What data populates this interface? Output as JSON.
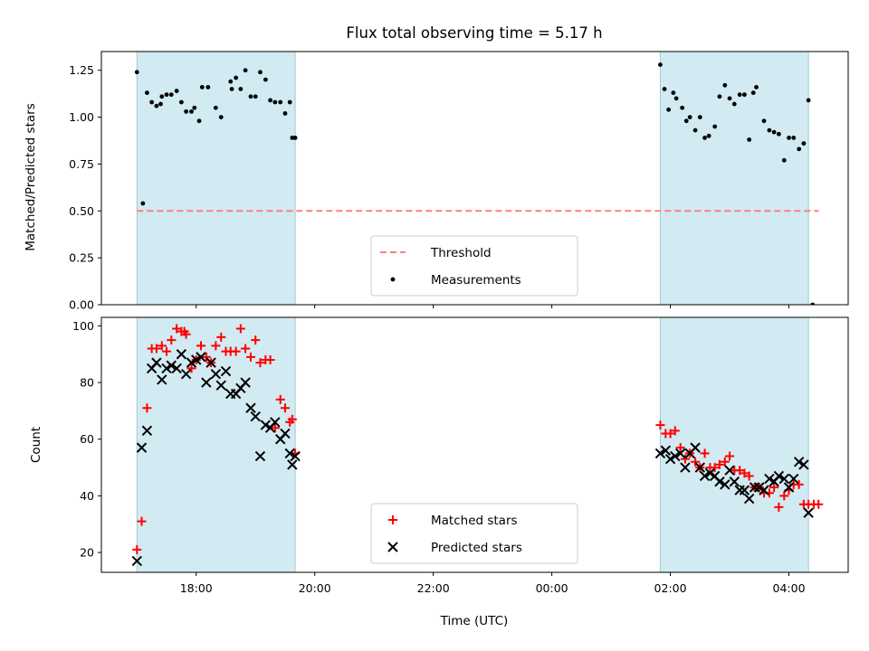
{
  "chart_data": [
    {
      "type": "scatter",
      "title": "Flux total observing time = 5.17 h",
      "ylabel": "Matched/Predicted stars",
      "xlabel": "",
      "xlim": [
        16.4,
        29.0
      ],
      "ylim": [
        0.0,
        1.35
      ],
      "y_ticks": [
        "0.00",
        "0.25",
        "0.50",
        "0.75",
        "1.00",
        "1.25"
      ],
      "y_tick_values": [
        0,
        0.25,
        0.5,
        0.75,
        1.0,
        1.25
      ],
      "x_tick_values": [
        18,
        20,
        22,
        24,
        26,
        28
      ],
      "shaded_intervals": [
        [
          17.0,
          19.67
        ],
        [
          25.83,
          28.33
        ]
      ],
      "shade_color": "#add8e6",
      "legend": {
        "placement": "lower-center",
        "entries": [
          "Threshold",
          "Measurements"
        ]
      },
      "threshold": {
        "name": "Threshold",
        "y": 0.5,
        "x": [
          17.0,
          28.5
        ],
        "color": "#ff7f7f"
      },
      "series": [
        {
          "name": "Measurements",
          "color": "#000000",
          "x": [
            17.0,
            17.1,
            17.17,
            17.25,
            17.33,
            17.4,
            17.42,
            17.5,
            17.58,
            17.67,
            17.75,
            17.83,
            17.92,
            17.97,
            18.05,
            18.1,
            18.2,
            18.33,
            18.42,
            18.58,
            18.6,
            18.67,
            18.75,
            18.83,
            18.92,
            19.0,
            19.08,
            19.17,
            19.25,
            19.33,
            19.42,
            19.5,
            19.58,
            19.62,
            19.67,
            25.83,
            25.9,
            25.97,
            26.05,
            26.1,
            26.2,
            26.27,
            26.33,
            26.42,
            26.5,
            26.58,
            26.65,
            26.75,
            26.83,
            26.92,
            27.0,
            27.08,
            27.17,
            27.25,
            27.33,
            27.4,
            27.45,
            27.58,
            27.67,
            27.75,
            27.83,
            27.92,
            28.0,
            28.08,
            28.17,
            28.25,
            28.33,
            28.4
          ],
          "y": [
            1.24,
            0.54,
            1.13,
            1.08,
            1.06,
            1.07,
            1.11,
            1.12,
            1.12,
            1.14,
            1.08,
            1.03,
            1.03,
            1.05,
            0.98,
            1.16,
            1.16,
            1.05,
            1.0,
            1.19,
            1.15,
            1.21,
            1.15,
            1.25,
            1.11,
            1.11,
            1.24,
            1.2,
            1.09,
            1.08,
            1.08,
            1.02,
            1.08,
            0.89,
            0.89,
            1.28,
            1.15,
            1.04,
            1.13,
            1.1,
            1.05,
            0.98,
            1.0,
            0.93,
            1.0,
            0.89,
            0.9,
            0.95,
            1.11,
            1.17,
            1.1,
            1.07,
            1.12,
            1.12,
            0.88,
            1.13,
            1.16,
            0.98,
            0.93,
            0.92,
            0.91,
            0.77,
            0.89,
            0.89,
            0.83,
            0.86,
            1.09,
            0.0
          ]
        }
      ]
    },
    {
      "type": "scatter",
      "title": "",
      "ylabel": "Count",
      "xlabel": "Time (UTC)",
      "xlim": [
        16.4,
        29.0
      ],
      "ylim": [
        13,
        103
      ],
      "y_ticks": [
        "20",
        "40",
        "60",
        "80",
        "100"
      ],
      "y_tick_values": [
        20,
        40,
        60,
        80,
        100
      ],
      "x_ticks": [
        "18:00",
        "20:00",
        "22:00",
        "00:00",
        "02:00",
        "04:00"
      ],
      "x_tick_values": [
        18,
        20,
        22,
        24,
        26,
        28
      ],
      "shaded_intervals": [
        [
          17.0,
          19.67
        ],
        [
          25.83,
          28.33
        ]
      ],
      "shade_color": "#add8e6",
      "legend": {
        "placement": "lower-center",
        "entries": [
          "Matched stars",
          "Predicted stars"
        ]
      },
      "series": [
        {
          "name": "Matched stars",
          "marker": "plus",
          "color": "#ff0000",
          "x": [
            17.0,
            17.08,
            17.17,
            17.25,
            17.33,
            17.42,
            17.5,
            17.58,
            17.67,
            17.75,
            17.8,
            17.83,
            17.92,
            18.0,
            18.08,
            18.17,
            18.25,
            18.33,
            18.42,
            18.5,
            18.58,
            18.67,
            18.75,
            18.83,
            18.92,
            19.0,
            19.08,
            19.17,
            19.25,
            19.33,
            19.42,
            19.5,
            19.58,
            19.62,
            19.67,
            25.83,
            25.92,
            26.0,
            26.08,
            26.17,
            26.25,
            26.33,
            26.42,
            26.5,
            26.58,
            26.67,
            26.75,
            26.83,
            26.92,
            27.0,
            27.08,
            27.17,
            27.25,
            27.33,
            27.42,
            27.5,
            27.58,
            27.67,
            27.75,
            27.83,
            27.92,
            28.0,
            28.08,
            28.17,
            28.25,
            28.33,
            28.42,
            28.5
          ],
          "y": [
            21,
            31,
            71,
            92,
            92,
            93,
            91,
            95,
            99,
            98,
            98,
            97,
            85,
            88,
            93,
            89,
            87,
            93,
            96,
            91,
            91,
            91,
            99,
            92,
            89,
            95,
            87,
            88,
            88,
            64,
            74,
            71,
            66,
            67,
            55,
            65,
            62,
            62,
            63,
            57,
            53,
            55,
            52,
            50,
            55,
            50,
            50,
            51,
            52,
            54,
            49,
            49,
            48,
            47,
            43,
            43,
            41,
            41,
            43,
            36,
            40,
            42,
            44,
            44,
            37,
            37,
            37,
            37
          ]
        },
        {
          "name": "Predicted stars",
          "marker": "x",
          "color": "#000000",
          "x": [
            17.0,
            17.08,
            17.17,
            17.25,
            17.33,
            17.42,
            17.5,
            17.58,
            17.67,
            17.75,
            17.83,
            17.92,
            18.0,
            18.08,
            18.17,
            18.25,
            18.33,
            18.42,
            18.5,
            18.58,
            18.67,
            18.75,
            18.83,
            18.92,
            19.0,
            19.08,
            19.17,
            19.25,
            19.33,
            19.42,
            19.5,
            19.58,
            19.62,
            19.67,
            25.83,
            25.92,
            26.0,
            26.08,
            26.17,
            26.25,
            26.33,
            26.42,
            26.5,
            26.58,
            26.67,
            26.75,
            26.83,
            26.92,
            27.0,
            27.08,
            27.17,
            27.25,
            27.33,
            27.42,
            27.5,
            27.58,
            27.67,
            27.75,
            27.83,
            27.92,
            28.0,
            28.08,
            28.17,
            28.25,
            28.33,
            28.42
          ],
          "y": [
            17,
            57,
            63,
            85,
            87,
            81,
            85,
            86,
            85,
            90,
            83,
            87,
            88,
            89,
            80,
            87,
            83,
            79,
            84,
            76,
            76,
            78,
            80,
            71,
            68,
            54,
            65,
            64,
            66,
            60,
            62,
            55,
            51,
            54,
            55,
            56,
            53,
            54,
            55,
            50,
            55,
            57,
            50,
            47,
            48,
            47,
            45,
            44,
            49,
            45,
            42,
            42,
            39,
            43,
            43,
            42,
            46,
            45,
            47,
            46,
            43,
            46,
            52,
            51,
            34,
            null
          ]
        }
      ]
    }
  ]
}
